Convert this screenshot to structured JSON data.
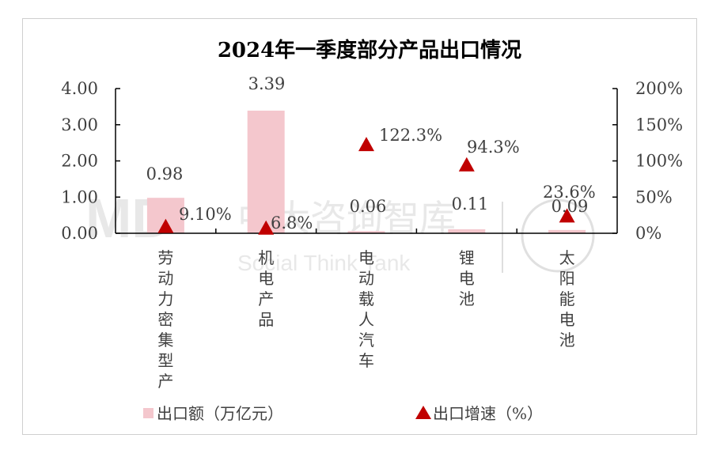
{
  "chart_data": {
    "type": "bar+scatter",
    "title": "2024年一季度部分产品出口情况",
    "categories": [
      "劳动力密集型产",
      "机电产品",
      "电动载人汽车",
      "锂电池",
      "太阳能电池"
    ],
    "series": [
      {
        "name": "出口额（万亿元）",
        "axis": "left",
        "type": "bar",
        "values": [
          0.98,
          3.39,
          0.06,
          0.11,
          0.09
        ],
        "labels": [
          "0.98",
          "3.39",
          "0.06",
          "0.11",
          "0.09"
        ]
      },
      {
        "name": "出口增速（%）",
        "axis": "right",
        "type": "scatter",
        "marker": "triangle",
        "values": [
          9.1,
          6.8,
          122.3,
          94.3,
          23.6
        ],
        "labels": [
          "9.10%",
          "6.8%",
          "122.3%",
          "94.3%",
          "23.6%"
        ]
      }
    ],
    "left_axis": {
      "ylim": [
        0,
        4
      ],
      "ticks": [
        "0.00",
        "1.00",
        "2.00",
        "3.00",
        "4.00"
      ]
    },
    "right_axis": {
      "ylim": [
        0,
        200
      ],
      "ticks": [
        "0%",
        "50%",
        "100%",
        "150%",
        "200%"
      ]
    },
    "colors": {
      "bar": "#f4c7cd",
      "marker": "#c00000",
      "axis": "#000000"
    },
    "legend_position": "bottom",
    "watermark": {
      "brand": "MD",
      "cn": "中大咨询智库",
      "en": "Social Think Tank"
    }
  }
}
